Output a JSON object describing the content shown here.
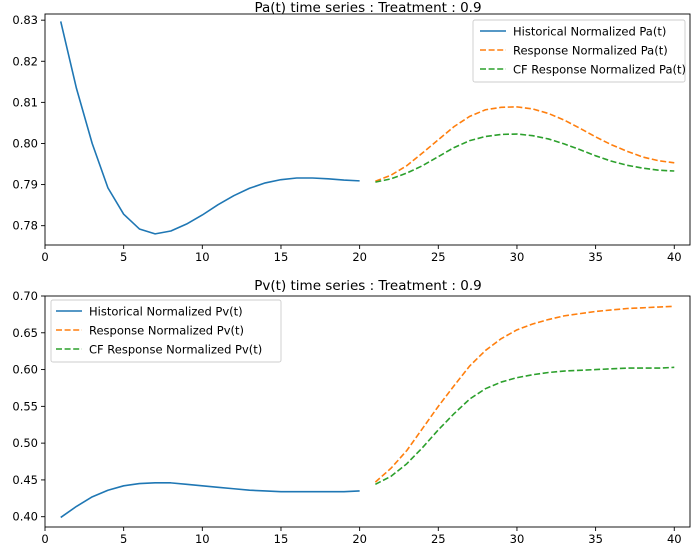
{
  "chart_data": [
    {
      "type": "line",
      "title": "Pa(t) time series : Treatment : 0.9",
      "xlim": [
        0,
        41
      ],
      "ylim": [
        0.7753,
        0.8315
      ],
      "xticks": [
        0,
        5,
        10,
        15,
        20,
        25,
        30,
        35,
        40
      ],
      "yticks": [
        0.78,
        0.79,
        0.8,
        0.81,
        0.82,
        0.83
      ],
      "ytick_labels": [
        "0.78",
        "0.79",
        "0.80",
        "0.81",
        "0.82",
        "0.83"
      ],
      "legend_position": "top-right",
      "series": [
        {
          "name": "Historical Normalized Pa(t)",
          "style": "solid",
          "color": "#1f77b4",
          "x": [
            1,
            2,
            3,
            4,
            5,
            6,
            7,
            8,
            9,
            10,
            11,
            12,
            13,
            14,
            15,
            16,
            17,
            18,
            19,
            20
          ],
          "y": [
            0.8297,
            0.8134,
            0.8,
            0.7892,
            0.7828,
            0.7792,
            0.778,
            0.7787,
            0.7804,
            0.7826,
            0.7851,
            0.7873,
            0.7891,
            0.7904,
            0.7912,
            0.7916,
            0.7916,
            0.7914,
            0.7911,
            0.7909
          ]
        },
        {
          "name": "Response Normalized Pa(t)",
          "style": "dashed",
          "color": "#ff7f0e",
          "x": [
            21,
            22,
            23,
            24,
            25,
            26,
            27,
            28,
            29,
            30,
            31,
            32,
            33,
            34,
            35,
            36,
            37,
            38,
            39,
            40
          ],
          "y": [
            0.7908,
            0.7923,
            0.7946,
            0.7977,
            0.8009,
            0.8041,
            0.8066,
            0.8082,
            0.8088,
            0.8089,
            0.8084,
            0.8073,
            0.8057,
            0.8037,
            0.8016,
            0.7997,
            0.7981,
            0.7967,
            0.7958,
            0.7953
          ]
        },
        {
          "name": "CF Response Normalized Pa(t)",
          "style": "dashed",
          "color": "#2ca02c",
          "x": [
            21,
            22,
            23,
            24,
            25,
            26,
            27,
            28,
            29,
            30,
            31,
            32,
            33,
            34,
            35,
            36,
            37,
            38,
            39,
            40
          ],
          "y": [
            0.7906,
            0.7914,
            0.7928,
            0.7946,
            0.7968,
            0.799,
            0.8007,
            0.8017,
            0.8022,
            0.8023,
            0.8019,
            0.8011,
            0.7999,
            0.7985,
            0.797,
            0.7957,
            0.7947,
            0.794,
            0.7935,
            0.7933
          ]
        }
      ]
    },
    {
      "type": "line",
      "title": "Pv(t) time series : Treatment : 0.9",
      "xlim": [
        0,
        41
      ],
      "ylim": [
        0.386,
        0.7
      ],
      "xticks": [
        0,
        5,
        10,
        15,
        20,
        25,
        30,
        35,
        40
      ],
      "yticks": [
        0.4,
        0.45,
        0.5,
        0.55,
        0.6,
        0.65,
        0.7
      ],
      "ytick_labels": [
        "0.40",
        "0.45",
        "0.50",
        "0.55",
        "0.60",
        "0.65",
        "0.70"
      ],
      "legend_position": "top-left",
      "series": [
        {
          "name": "Historical Normalized Pv(t)",
          "style": "solid",
          "color": "#1f77b4",
          "x": [
            1,
            2,
            3,
            4,
            5,
            6,
            7,
            8,
            9,
            10,
            11,
            12,
            13,
            14,
            15,
            16,
            17,
            18,
            19,
            20
          ],
          "y": [
            0.399,
            0.414,
            0.427,
            0.436,
            0.442,
            0.445,
            0.446,
            0.446,
            0.444,
            0.442,
            0.44,
            0.438,
            0.436,
            0.435,
            0.434,
            0.434,
            0.434,
            0.434,
            0.434,
            0.435
          ]
        },
        {
          "name": "Response Normalized Pv(t)",
          "style": "dashed",
          "color": "#ff7f0e",
          "x": [
            21,
            22,
            23,
            24,
            25,
            26,
            27,
            28,
            29,
            30,
            31,
            32,
            33,
            34,
            35,
            36,
            37,
            38,
            39,
            40
          ],
          "y": [
            0.447,
            0.466,
            0.49,
            0.52,
            0.55,
            0.578,
            0.605,
            0.626,
            0.642,
            0.654,
            0.662,
            0.668,
            0.673,
            0.676,
            0.679,
            0.681,
            0.683,
            0.684,
            0.685,
            0.686
          ]
        },
        {
          "name": "CF Response Normalized Pv(t)",
          "style": "dashed",
          "color": "#2ca02c",
          "x": [
            21,
            22,
            23,
            24,
            25,
            26,
            27,
            28,
            29,
            30,
            31,
            32,
            33,
            34,
            35,
            36,
            37,
            38,
            39,
            40
          ],
          "y": [
            0.444,
            0.455,
            0.472,
            0.494,
            0.518,
            0.54,
            0.56,
            0.574,
            0.583,
            0.589,
            0.593,
            0.596,
            0.598,
            0.599,
            0.6,
            0.601,
            0.602,
            0.602,
            0.602,
            0.603
          ]
        }
      ]
    }
  ]
}
